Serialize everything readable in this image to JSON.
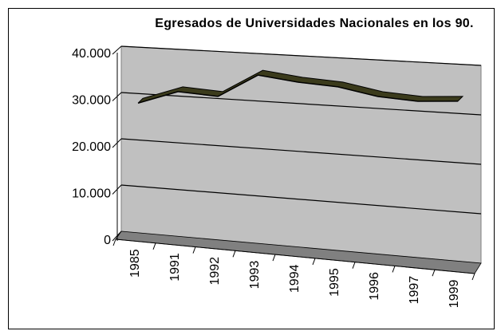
{
  "chart_data": {
    "type": "line3d",
    "title": "Egresados de Universidades Nacionales en los 90.",
    "categories": [
      "1985",
      "1991",
      "1992",
      "1993",
      "1994",
      "1995",
      "1996",
      "1997",
      "1999"
    ],
    "series": [
      {
        "name": "Egresados",
        "color": "#3b3b1c",
        "values": [
          28500,
          31500,
          31000,
          36000,
          35000,
          34500,
          33000,
          32500,
          33000
        ]
      }
    ],
    "ylim": [
      0,
      40000
    ],
    "yticks": [
      0,
      {
        "value": 10000,
        "label": "10.000"
      },
      {
        "value": 20000,
        "label": "20.000"
      },
      {
        "value": 30000,
        "label": "30.000"
      },
      {
        "value": 40000,
        "label": "40.000"
      }
    ],
    "grid": true
  }
}
